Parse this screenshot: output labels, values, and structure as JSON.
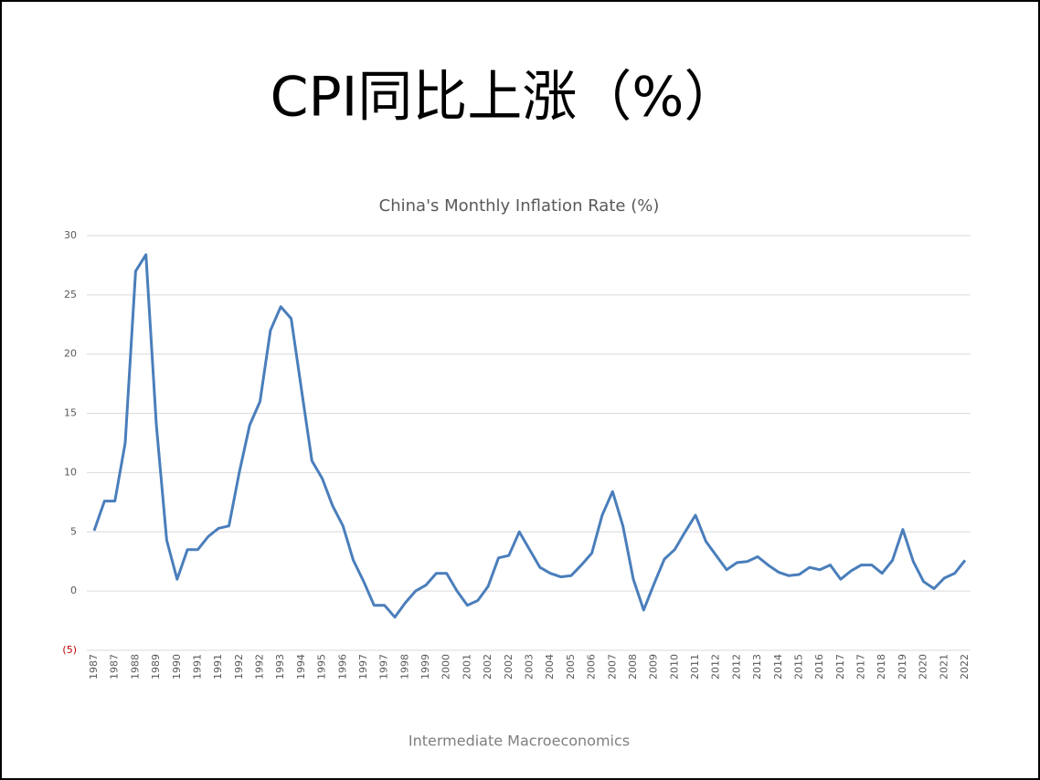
{
  "slide_title": "CPI同比上涨（%）",
  "footer": "Intermediate Macroeconomics",
  "chart_data": {
    "type": "line",
    "title": "China's Monthly Inflation Rate (%)",
    "categories": [
      "1987",
      null,
      "1987",
      null,
      "1988",
      null,
      "1989",
      null,
      "1990",
      null,
      "1991",
      null,
      "1991",
      null,
      "1992",
      null,
      "1992",
      null,
      "1993",
      null,
      "1994",
      null,
      "1995",
      null,
      "1996",
      null,
      "1997",
      null,
      "1997",
      null,
      "1998",
      null,
      "1999",
      null,
      "2000",
      null,
      "2001",
      null,
      "2002",
      null,
      "2002",
      null,
      "2003",
      null,
      "2004",
      null,
      "2005",
      null,
      "2006",
      null,
      "2007",
      null,
      "2008",
      null,
      "2009",
      null,
      "2010",
      null,
      "2011",
      null,
      "2012",
      null,
      "2012",
      null,
      "2013",
      null,
      "2014",
      null,
      "2015",
      null,
      "2016",
      null,
      "2017",
      null,
      "2017",
      null,
      "2018",
      null,
      "2019",
      null,
      "2020",
      null,
      "2021",
      null,
      "2022"
    ],
    "series": [
      {
        "name": "CPI",
        "color": "#4a7ebb",
        "values": [
          5.1,
          7.6,
          7.6,
          12.5,
          27,
          28.4,
          14,
          4.3,
          1.0,
          3.5,
          3.5,
          4.6,
          5.3,
          5.5,
          10,
          14,
          16,
          22,
          24,
          23,
          17,
          11,
          9.5,
          7.2,
          5.5,
          2.6,
          0.8,
          -1.2,
          -1.2,
          -2.2,
          -1.0,
          0,
          0.5,
          1.5,
          1.5,
          0,
          -1.2,
          -0.8,
          0.4,
          2.8,
          3.0,
          5.0,
          3.5,
          2.0,
          1.5,
          1.2,
          1.3,
          2.2,
          3.2,
          6.4,
          8.4,
          5.5,
          1.0,
          -1.6,
          0.6,
          2.7,
          3.5,
          5.0,
          6.4,
          4.2,
          3.0,
          1.8,
          2.4,
          2.5,
          2.9,
          2.2,
          1.6,
          1.3,
          1.4,
          2.0,
          1.8,
          2.2,
          1.0,
          1.7,
          2.2,
          2.2,
          1.5,
          2.6,
          5.2,
          2.5,
          0.8,
          0.2,
          1.1,
          1.5,
          2.6
        ]
      }
    ],
    "ylim": [
      -5,
      30
    ],
    "yticks": [
      30,
      25,
      20,
      15,
      10,
      5,
      0,
      {
        "value": -5,
        "label": "(5)"
      }
    ],
    "negative_tick_color": "#c00000",
    "grid": true
  }
}
